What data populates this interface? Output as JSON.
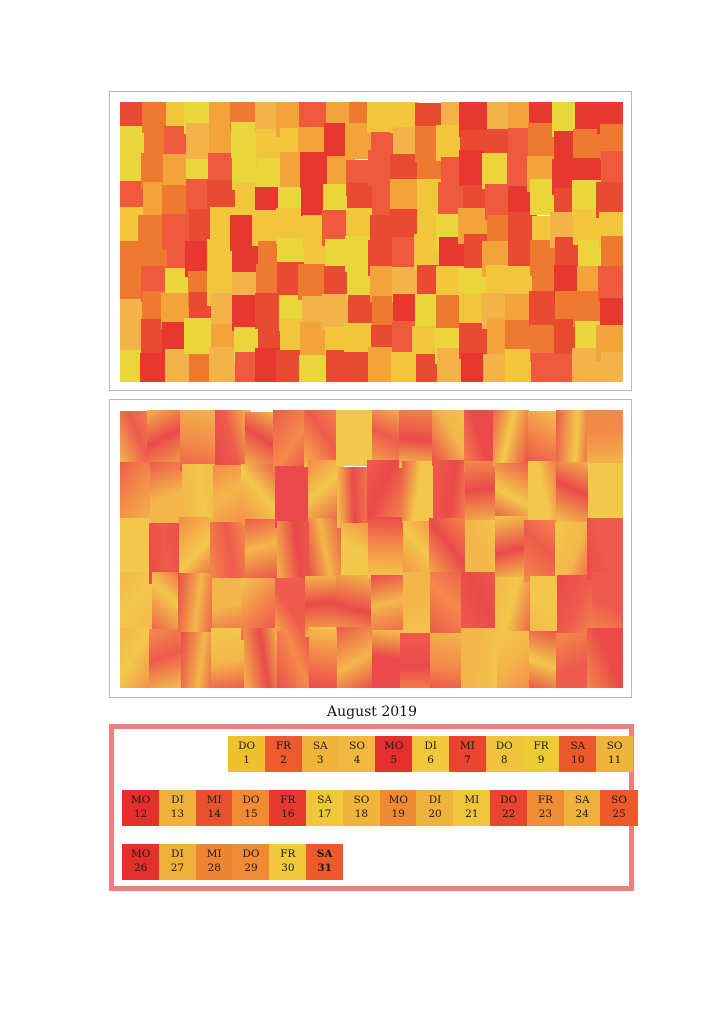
{
  "document": {
    "pattern_palette": [
      "#e84a32",
      "#ee7a30",
      "#f2a33a",
      "#f1c53c",
      "#e8d63c",
      "#e8372e",
      "#f05a3c",
      "#f4b34a"
    ],
    "gradient_palette": [
      "#ee5a4c",
      "#f48a4a",
      "#f3b64a",
      "#f2c84a",
      "#ea4a4a"
    ]
  },
  "calendar": {
    "title": "August 2019",
    "frame_color": "#ef7f7f",
    "weeks": [
      [
        {
          "name": "DO",
          "num": "1",
          "color": "#efc12e"
        },
        {
          "name": "FR",
          "num": "2",
          "color": "#ec5a2e"
        },
        {
          "name": "SA",
          "num": "3",
          "color": "#f0b43a"
        },
        {
          "name": "SO",
          "num": "4",
          "color": "#f2b73e"
        },
        {
          "name": "MO",
          "num": "5",
          "color": "#e4302c"
        },
        {
          "name": "DI",
          "num": "6",
          "color": "#efc83b"
        },
        {
          "name": "MI",
          "num": "7",
          "color": "#e8442e"
        },
        {
          "name": "DO",
          "num": "8",
          "color": "#efc43c"
        },
        {
          "name": "FR",
          "num": "9",
          "color": "#ebcb33"
        },
        {
          "name": "SA",
          "num": "10",
          "color": "#eb5a2c"
        },
        {
          "name": "SO",
          "num": "11",
          "color": "#efb43c"
        }
      ],
      [
        {
          "name": "MO",
          "num": "12",
          "color": "#e4302c"
        },
        {
          "name": "DI",
          "num": "13",
          "color": "#efb13c"
        },
        {
          "name": "MI",
          "num": "14",
          "color": "#e8502e"
        },
        {
          "name": "DO",
          "num": "15",
          "color": "#f08a34"
        },
        {
          "name": "FR",
          "num": "16",
          "color": "#e8392e"
        },
        {
          "name": "SA",
          "num": "17",
          "color": "#efc83a"
        },
        {
          "name": "SO",
          "num": "18",
          "color": "#efb53a"
        },
        {
          "name": "MO",
          "num": "19",
          "color": "#ee8a33"
        },
        {
          "name": "DI",
          "num": "20",
          "color": "#efb23c"
        },
        {
          "name": "MI",
          "num": "21",
          "color": "#efc53c"
        },
        {
          "name": "DO",
          "num": "22",
          "color": "#e8442e"
        },
        {
          "name": "FR",
          "num": "23",
          "color": "#ef8c36"
        },
        {
          "name": "SA",
          "num": "24",
          "color": "#efb13a"
        },
        {
          "name": "SO",
          "num": "25",
          "color": "#ec5a2c"
        }
      ],
      [
        {
          "name": "MO",
          "num": "26",
          "color": "#e4302c"
        },
        {
          "name": "DI",
          "num": "27",
          "color": "#efb13a"
        },
        {
          "name": "MI",
          "num": "28",
          "color": "#ee8432"
        },
        {
          "name": "DO",
          "num": "29",
          "color": "#f08a34"
        },
        {
          "name": "FR",
          "num": "30",
          "color": "#efc83c"
        },
        {
          "name": "SA",
          "num": "31",
          "color": "#ec5a2c",
          "bold": true
        }
      ]
    ]
  }
}
